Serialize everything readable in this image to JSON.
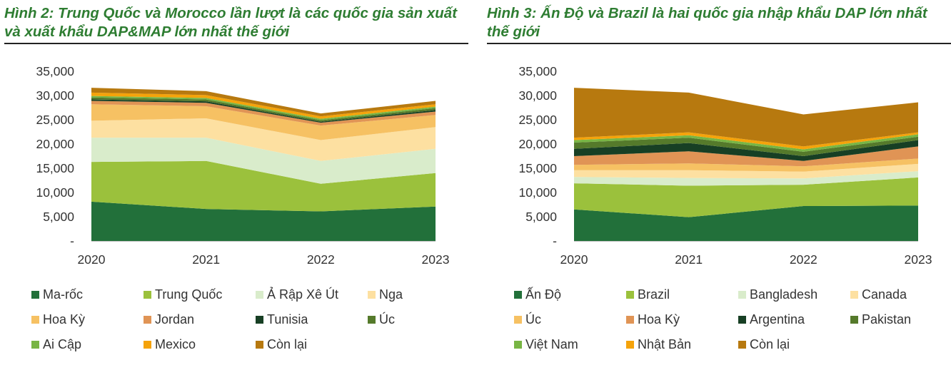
{
  "chart_data": [
    {
      "type": "area",
      "stacked": true,
      "title": "Hình 2: Trung Quốc và Morocco lần lượt là các quốc gia sản xuất và xuất khẩu DAP&MAP lớn nhất thế giới",
      "x": [
        "2020",
        "2021",
        "2022",
        "2023"
      ],
      "ylim": [
        0,
        35000
      ],
      "yticks": [
        "-",
        "5,000",
        "10,000",
        "15,000",
        "20,000",
        "25,000",
        "30,000",
        "35,000"
      ],
      "series": [
        {
          "name": "Ma-rốc",
          "color": "#22703a",
          "values": [
            8100,
            6600,
            6100,
            7100
          ]
        },
        {
          "name": "Trung Quốc",
          "color": "#9bc13c",
          "values": [
            8200,
            9900,
            5700,
            6900
          ]
        },
        {
          "name": "Ả Rập Xê Út",
          "color": "#d9eccb",
          "values": [
            5000,
            4800,
            4700,
            5000
          ]
        },
        {
          "name": "Nga",
          "color": "#fde0a1",
          "values": [
            3500,
            4000,
            4300,
            4500
          ]
        },
        {
          "name": "Hoa Kỳ",
          "color": "#f6c163",
          "values": [
            3400,
            2500,
            3000,
            2500
          ]
        },
        {
          "name": "Jordan",
          "color": "#e09455",
          "values": [
            700,
            700,
            600,
            700
          ]
        },
        {
          "name": "Tunisia",
          "color": "#173f24",
          "values": [
            300,
            300,
            200,
            300
          ]
        },
        {
          "name": "Úc",
          "color": "#557a2b",
          "values": [
            400,
            400,
            300,
            400
          ]
        },
        {
          "name": "Ai Cập",
          "color": "#78b544",
          "values": [
            300,
            300,
            300,
            300
          ]
        },
        {
          "name": "Mexico",
          "color": "#f5a30a",
          "values": [
            700,
            600,
            500,
            500
          ]
        },
        {
          "name": "Còn lại",
          "color": "#b7790f",
          "values": [
            1000,
            800,
            600,
            700
          ]
        }
      ]
    },
    {
      "type": "area",
      "stacked": true,
      "title": "Hình 3: Ấn Độ và Brazil là hai quốc gia nhập khẩu DAP lớn nhất thế giới",
      "x": [
        "2020",
        "2021",
        "2022",
        "2023"
      ],
      "ylim": [
        0,
        35000
      ],
      "yticks": [
        "-",
        "5,000",
        "10,000",
        "15,000",
        "20,000",
        "25,000",
        "30,000",
        "35,000"
      ],
      "series": [
        {
          "name": "Ấn Độ",
          "color": "#22703a",
          "values": [
            6500,
            4900,
            7200,
            7300
          ]
        },
        {
          "name": "Brazil",
          "color": "#9bc13c",
          "values": [
            5400,
            6500,
            4400,
            5800
          ]
        },
        {
          "name": "Bangladesh",
          "color": "#d9eccb",
          "values": [
            1300,
            1600,
            1300,
            1300
          ]
        },
        {
          "name": "Canada",
          "color": "#fde0a1",
          "values": [
            1400,
            1600,
            1400,
            1500
          ]
        },
        {
          "name": "Úc",
          "color": "#f6c163",
          "values": [
            1100,
            1400,
            1100,
            1100
          ]
        },
        {
          "name": "Hoa Kỳ",
          "color": "#e09455",
          "values": [
            1800,
            2500,
            1100,
            2500
          ]
        },
        {
          "name": "Argentina",
          "color": "#173f24",
          "values": [
            1500,
            1700,
            1000,
            1300
          ]
        },
        {
          "name": "Pakistan",
          "color": "#557a2b",
          "values": [
            1300,
            1100,
            900,
            700
          ]
        },
        {
          "name": "Việt Nam",
          "color": "#78b544",
          "values": [
            500,
            500,
            500,
            500
          ]
        },
        {
          "name": "Nhật Bản",
          "color": "#f5a30a",
          "values": [
            500,
            600,
            600,
            400
          ]
        },
        {
          "name": "Còn lại",
          "color": "#b7790f",
          "values": [
            10300,
            8200,
            6600,
            6200
          ]
        }
      ]
    }
  ]
}
